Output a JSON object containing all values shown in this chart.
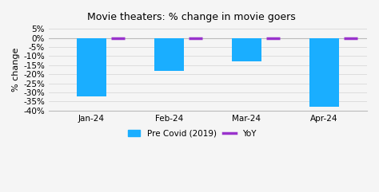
{
  "title": "Movie theaters: % change in movie goers",
  "categories": [
    "Jan-24",
    "Feb-24",
    "Mar-24",
    "Apr-24"
  ],
  "pre_covid_values": [
    -32,
    -18,
    -13,
    -38
  ],
  "yoy_values": [
    0,
    0,
    0,
    0
  ],
  "bar_color": "#1aaeff",
  "yoy_color": "#9933cc",
  "ylabel": "% change",
  "ylim": [
    -40,
    5
  ],
  "yticks": [
    5,
    0,
    -5,
    -10,
    -15,
    -20,
    -25,
    -30,
    -35,
    -40
  ],
  "bar_width": 0.38,
  "background_color": "#f5f5f5",
  "grid_color": "#dddddd",
  "legend_label_bar": "Pre Covid (2019)",
  "legend_label_line": "YoY"
}
